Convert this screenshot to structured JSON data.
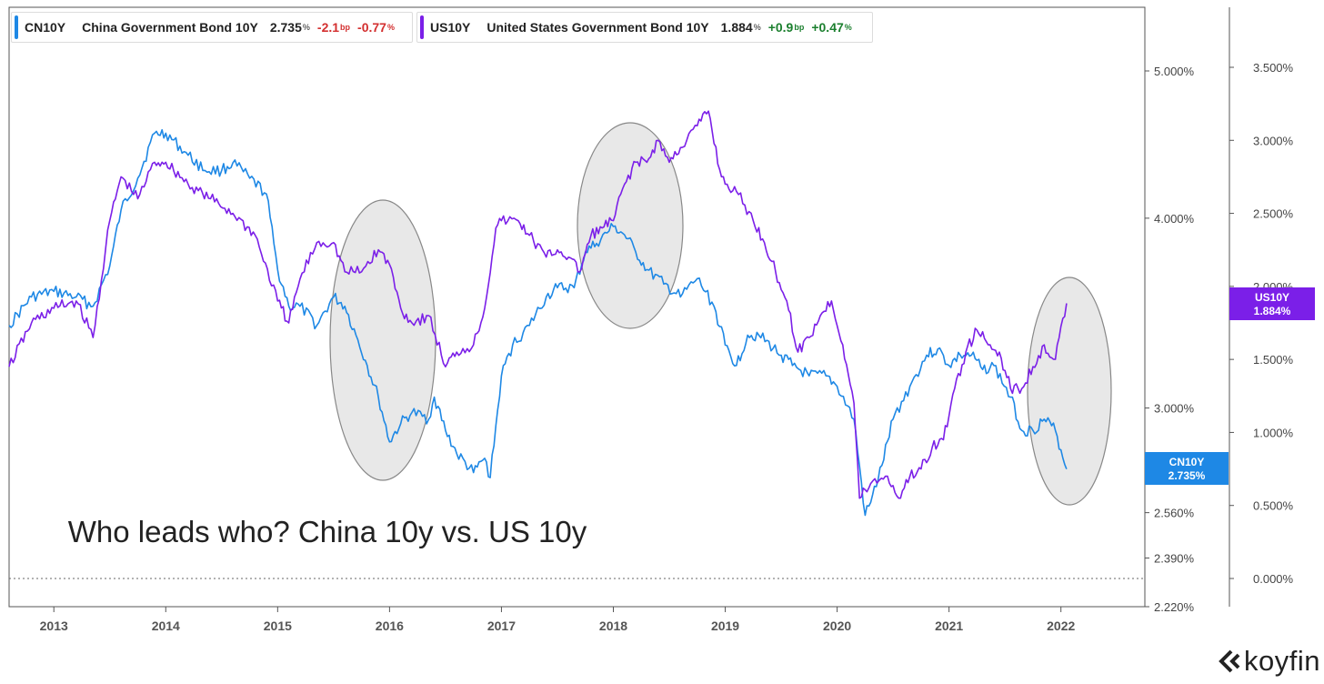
{
  "legend": [
    {
      "symbol": "CN10Y",
      "name": "China Government Bond 10Y",
      "value": "2.735",
      "value_unit": "%",
      "change_bp": "-2.1",
      "bp_unit": "bp",
      "change_pct": "-0.77",
      "pct_unit": "%",
      "color": "#1e88e5",
      "change_color": "#d32f2f"
    },
    {
      "symbol": "US10Y",
      "name": "United States Government Bond 10Y",
      "value": "1.884",
      "value_unit": "%",
      "change_bp": "+0.9",
      "bp_unit": "bp",
      "change_pct": "+0.47",
      "pct_unit": "%",
      "color": "#7b1fe8",
      "change_color": "#1b7f2e"
    }
  ],
  "title": "Who leads who? China 10y vs. US 10y",
  "brand": "koyfin",
  "colors": {
    "cn": "#1e88e5",
    "us": "#7b1fe8",
    "circle_fill": "#e8e8e8",
    "circle_stroke": "#888888"
  },
  "chart_data": {
    "type": "line",
    "x_ticks": [
      "2013",
      "2014",
      "2015",
      "2016",
      "2017",
      "2018",
      "2019",
      "2020",
      "2021",
      "2022"
    ],
    "x_range": [
      2012.6,
      2022.75
    ],
    "left_axis": {
      "ticks": [
        "5.000%",
        "4.000%",
        "3.000%",
        "2.560%",
        "2.390%",
        "2.220%"
      ],
      "tick_values": [
        5.0,
        4.0,
        3.0,
        2.56,
        2.39,
        2.22
      ],
      "series": "CN10Y"
    },
    "right_axis": {
      "ticks": [
        "3.500%",
        "3.000%",
        "2.500%",
        "2.000%",
        "1.500%",
        "1.000%",
        "0.500%",
        "0.000%"
      ],
      "tick_values": [
        3.5,
        3.0,
        2.5,
        2.0,
        1.5,
        1.0,
        0.5,
        0.0
      ],
      "series": "US10Y"
    },
    "last_value_labels": [
      {
        "series": "US10Y",
        "label": "US10Y",
        "value": "1.884%",
        "color": "#7b1fe8"
      },
      {
        "series": "CN10Y",
        "label": "CN10Y",
        "value": "2.735%",
        "color": "#1e88e5"
      }
    ],
    "series": [
      {
        "name": "CN10Y",
        "axis": "left",
        "color": "#1e88e5",
        "points": [
          [
            2012.6,
            3.4
          ],
          [
            2012.8,
            3.55
          ],
          [
            2013.0,
            3.58
          ],
          [
            2013.2,
            3.55
          ],
          [
            2013.35,
            3.5
          ],
          [
            2013.5,
            3.72
          ],
          [
            2013.6,
            4.05
          ],
          [
            2013.75,
            4.25
          ],
          [
            2013.9,
            4.55
          ],
          [
            2014.0,
            4.55
          ],
          [
            2014.2,
            4.4
          ],
          [
            2014.35,
            4.3
          ],
          [
            2014.5,
            4.3
          ],
          [
            2014.6,
            4.35
          ],
          [
            2014.75,
            4.25
          ],
          [
            2014.9,
            4.15
          ],
          [
            2015.0,
            3.7
          ],
          [
            2015.1,
            3.5
          ],
          [
            2015.2,
            3.5
          ],
          [
            2015.35,
            3.4
          ],
          [
            2015.5,
            3.55
          ],
          [
            2015.6,
            3.5
          ],
          [
            2015.7,
            3.35
          ],
          [
            2015.8,
            3.2
          ],
          [
            2015.9,
            3.05
          ],
          [
            2016.0,
            2.85
          ],
          [
            2016.1,
            2.93
          ],
          [
            2016.2,
            2.98
          ],
          [
            2016.35,
            2.95
          ],
          [
            2016.4,
            3.05
          ],
          [
            2016.5,
            2.9
          ],
          [
            2016.6,
            2.8
          ],
          [
            2016.75,
            2.72
          ],
          [
            2016.85,
            2.78
          ],
          [
            2016.9,
            2.7
          ],
          [
            2017.0,
            3.15
          ],
          [
            2017.1,
            3.3
          ],
          [
            2017.25,
            3.4
          ],
          [
            2017.4,
            3.55
          ],
          [
            2017.5,
            3.6
          ],
          [
            2017.65,
            3.6
          ],
          [
            2017.75,
            3.8
          ],
          [
            2017.85,
            3.85
          ],
          [
            2018.0,
            3.95
          ],
          [
            2018.1,
            3.9
          ],
          [
            2018.2,
            3.8
          ],
          [
            2018.3,
            3.7
          ],
          [
            2018.45,
            3.62
          ],
          [
            2018.6,
            3.55
          ],
          [
            2018.75,
            3.65
          ],
          [
            2018.9,
            3.5
          ],
          [
            2019.0,
            3.3
          ],
          [
            2019.1,
            3.2
          ],
          [
            2019.2,
            3.35
          ],
          [
            2019.3,
            3.35
          ],
          [
            2019.5,
            3.25
          ],
          [
            2019.6,
            3.2
          ],
          [
            2019.75,
            3.15
          ],
          [
            2019.9,
            3.15
          ],
          [
            2020.0,
            3.1
          ],
          [
            2020.15,
            2.95
          ],
          [
            2020.25,
            2.55
          ],
          [
            2020.3,
            2.6
          ],
          [
            2020.4,
            2.75
          ],
          [
            2020.5,
            2.95
          ],
          [
            2020.65,
            3.1
          ],
          [
            2020.8,
            3.25
          ],
          [
            2020.9,
            3.28
          ],
          [
            2021.0,
            3.2
          ],
          [
            2021.1,
            3.25
          ],
          [
            2021.2,
            3.25
          ],
          [
            2021.3,
            3.18
          ],
          [
            2021.4,
            3.2
          ],
          [
            2021.55,
            3.05
          ],
          [
            2021.65,
            2.9
          ],
          [
            2021.75,
            2.9
          ],
          [
            2021.85,
            2.95
          ],
          [
            2021.95,
            2.9
          ],
          [
            2022.05,
            2.735
          ]
        ]
      },
      {
        "name": "US10Y",
        "axis": "right",
        "color": "#7b1fe8",
        "points": [
          [
            2012.6,
            1.45
          ],
          [
            2012.8,
            1.75
          ],
          [
            2013.0,
            1.85
          ],
          [
            2013.2,
            1.9
          ],
          [
            2013.35,
            1.65
          ],
          [
            2013.5,
            2.45
          ],
          [
            2013.6,
            2.75
          ],
          [
            2013.75,
            2.6
          ],
          [
            2013.9,
            2.85
          ],
          [
            2014.0,
            2.85
          ],
          [
            2014.2,
            2.7
          ],
          [
            2014.4,
            2.6
          ],
          [
            2014.6,
            2.5
          ],
          [
            2014.8,
            2.35
          ],
          [
            2015.0,
            1.9
          ],
          [
            2015.1,
            1.75
          ],
          [
            2015.2,
            2.05
          ],
          [
            2015.35,
            2.3
          ],
          [
            2015.5,
            2.3
          ],
          [
            2015.6,
            2.1
          ],
          [
            2015.75,
            2.1
          ],
          [
            2015.9,
            2.25
          ],
          [
            2016.0,
            2.15
          ],
          [
            2016.1,
            1.85
          ],
          [
            2016.2,
            1.75
          ],
          [
            2016.35,
            1.8
          ],
          [
            2016.5,
            1.45
          ],
          [
            2016.6,
            1.55
          ],
          [
            2016.75,
            1.6
          ],
          [
            2016.85,
            1.85
          ],
          [
            2016.95,
            2.4
          ],
          [
            2017.0,
            2.45
          ],
          [
            2017.15,
            2.45
          ],
          [
            2017.25,
            2.35
          ],
          [
            2017.4,
            2.2
          ],
          [
            2017.5,
            2.25
          ],
          [
            2017.6,
            2.2
          ],
          [
            2017.7,
            2.1
          ],
          [
            2017.8,
            2.35
          ],
          [
            2017.9,
            2.4
          ],
          [
            2018.0,
            2.45
          ],
          [
            2018.1,
            2.7
          ],
          [
            2018.2,
            2.85
          ],
          [
            2018.3,
            2.85
          ],
          [
            2018.4,
            3.0
          ],
          [
            2018.5,
            2.85
          ],
          [
            2018.6,
            2.95
          ],
          [
            2018.75,
            3.1
          ],
          [
            2018.85,
            3.2
          ],
          [
            2018.95,
            2.8
          ],
          [
            2019.0,
            2.7
          ],
          [
            2019.1,
            2.65
          ],
          [
            2019.25,
            2.45
          ],
          [
            2019.35,
            2.3
          ],
          [
            2019.45,
            2.1
          ],
          [
            2019.55,
            1.9
          ],
          [
            2019.65,
            1.55
          ],
          [
            2019.75,
            1.65
          ],
          [
            2019.85,
            1.8
          ],
          [
            2019.95,
            1.9
          ],
          [
            2020.05,
            1.6
          ],
          [
            2020.15,
            1.2
          ],
          [
            2020.2,
            0.55
          ],
          [
            2020.3,
            0.65
          ],
          [
            2020.45,
            0.7
          ],
          [
            2020.55,
            0.55
          ],
          [
            2020.65,
            0.7
          ],
          [
            2020.75,
            0.75
          ],
          [
            2020.85,
            0.9
          ],
          [
            2020.95,
            0.95
          ],
          [
            2021.05,
            1.3
          ],
          [
            2021.15,
            1.55
          ],
          [
            2021.25,
            1.7
          ],
          [
            2021.35,
            1.6
          ],
          [
            2021.45,
            1.55
          ],
          [
            2021.55,
            1.3
          ],
          [
            2021.65,
            1.3
          ],
          [
            2021.75,
            1.45
          ],
          [
            2021.85,
            1.6
          ],
          [
            2021.95,
            1.5
          ],
          [
            2022.05,
            1.884
          ]
        ]
      }
    ]
  }
}
